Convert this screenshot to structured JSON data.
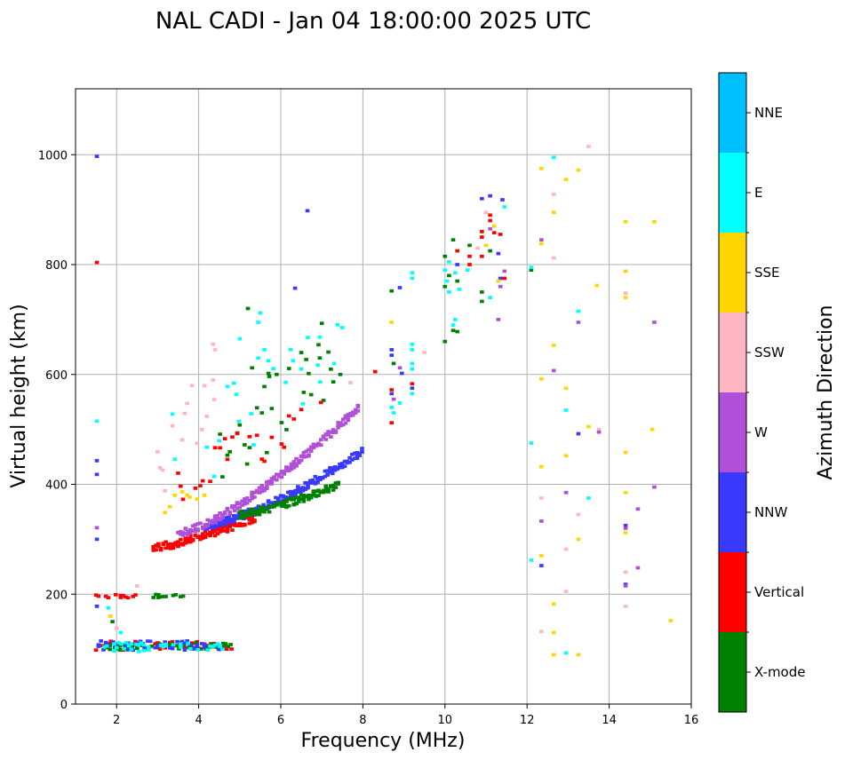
{
  "chart_data": {
    "type": "scatter",
    "title": "NAL CADI - Jan 04 18:00:00 2025 UTC",
    "xlabel": "Frequency (MHz)",
    "ylabel": "Virtual height (km)",
    "xlim": [
      1,
      16
    ],
    "ylim": [
      0,
      1120
    ],
    "grid": true,
    "xticks": [
      2,
      4,
      6,
      8,
      10,
      12,
      14,
      16
    ],
    "yticks": [
      0,
      200,
      400,
      600,
      800,
      1000
    ],
    "marker": "short horizontal dash per echo (approx. 0.1 MHz x 6 km)",
    "colorbar": {
      "label": "Azimuth Direction",
      "categories": [
        {
          "name": "X-mode",
          "color": "#008000"
        },
        {
          "name": "Vertical",
          "color": "#ff0000"
        },
        {
          "name": "NNW",
          "color": "#3a3aff"
        },
        {
          "name": "W",
          "color": "#b050d8"
        },
        {
          "name": "SSW",
          "color": "#ffb6c1"
        },
        {
          "name": "SSE",
          "color": "#ffd700"
        },
        {
          "name": "E",
          "color": "#00ffff"
        },
        {
          "name": "NNE",
          "color": "#00bfff"
        }
      ]
    },
    "traces": [
      {
        "category": "Vertical",
        "description": "E-layer trace",
        "x_range": [
          1.5,
          4.8
        ],
        "y_range": [
          98,
          115
        ]
      },
      {
        "category": "X-mode",
        "description": "E-layer trace",
        "x_range": [
          1.6,
          4.9
        ],
        "y_range": [
          98,
          112
        ]
      },
      {
        "category": "NNW",
        "description": "E-layer trace",
        "x_range": [
          1.5,
          4.5
        ],
        "y_range": [
          98,
          115
        ]
      },
      {
        "category": "E",
        "description": "E-layer trace",
        "x_range": [
          1.7,
          4.6
        ],
        "y_range": [
          95,
          112
        ]
      },
      {
        "category": "Vertical",
        "description": "2nd hop E trace",
        "x_range": [
          1.5,
          2.5
        ],
        "y_range": [
          193,
          200
        ]
      },
      {
        "category": "X-mode",
        "description": "2nd hop E trace",
        "x_range": [
          2.9,
          3.7
        ],
        "y_range": [
          193,
          200
        ]
      },
      {
        "category": "Vertical",
        "description": "F-layer trace",
        "x_range": [
          2.9,
          5.4
        ],
        "y_range": [
          285,
          340
        ]
      },
      {
        "category": "NNW",
        "description": "F-layer trace",
        "x_range": [
          4.2,
          8.0
        ],
        "y_range": [
          325,
          460
        ]
      },
      {
        "category": "X-mode",
        "description": "F-layer trace",
        "x_range": [
          5.0,
          7.4
        ],
        "y_range": [
          345,
          400
        ]
      },
      {
        "category": "W",
        "description": "F-layer trace",
        "x_range": [
          3.5,
          7.9
        ],
        "y_range": [
          310,
          540
        ]
      },
      {
        "category": "SSE",
        "description": "F-layer oblique spread",
        "x_range": [
          3.0,
          4.5
        ],
        "y_range": [
          340,
          420
        ]
      },
      {
        "category": "E",
        "description": "F-layer oblique spread",
        "x_range": [
          3.0,
          7.5
        ],
        "y_range": [
          350,
          715
        ]
      },
      {
        "category": "SSW",
        "description": "F-layer oblique spread",
        "x_range": [
          3.0,
          4.5
        ],
        "y_range": [
          360,
          655
        ]
      },
      {
        "category": "X-mode",
        "description": "F-layer oblique spread",
        "x_range": [
          4.4,
          7.3
        ],
        "y_range": [
          380,
          695
        ]
      },
      {
        "category": "Vertical",
        "description": "F-layer oblique spread",
        "x_range": [
          3.5,
          7.0
        ],
        "y_range": [
          360,
          560
        ]
      }
    ],
    "echoes": [
      {
        "f": 1.52,
        "h": 997,
        "c": "NNW"
      },
      {
        "f": 1.52,
        "h": 804,
        "c": "Vertical"
      },
      {
        "f": 1.52,
        "h": 515,
        "c": "E"
      },
      {
        "f": 1.52,
        "h": 443,
        "c": "NNW"
      },
      {
        "f": 1.52,
        "h": 418,
        "c": "NNW"
      },
      {
        "f": 1.52,
        "h": 321,
        "c": "W"
      },
      {
        "f": 1.52,
        "h": 300,
        "c": "NNW"
      },
      {
        "f": 1.52,
        "h": 178,
        "c": "NNW"
      },
      {
        "f": 1.8,
        "h": 175,
        "c": "E"
      },
      {
        "f": 1.85,
        "h": 160,
        "c": "SSE"
      },
      {
        "f": 1.9,
        "h": 150,
        "c": "X-mode"
      },
      {
        "f": 2.0,
        "h": 138,
        "c": "SSW"
      },
      {
        "f": 2.1,
        "h": 130,
        "c": "E"
      },
      {
        "f": 2.5,
        "h": 215,
        "c": "SSW"
      },
      {
        "f": 6.65,
        "h": 898,
        "c": "NNW"
      },
      {
        "f": 6.35,
        "h": 757,
        "c": "NNW"
      },
      {
        "f": 7.0,
        "h": 693,
        "c": "X-mode"
      },
      {
        "f": 6.95,
        "h": 668,
        "c": "E"
      },
      {
        "f": 5.2,
        "h": 720,
        "c": "X-mode"
      },
      {
        "f": 5.5,
        "h": 712,
        "c": "E"
      },
      {
        "f": 5.45,
        "h": 695,
        "c": "E"
      },
      {
        "f": 5.0,
        "h": 665,
        "c": "E"
      },
      {
        "f": 5.6,
        "h": 645,
        "c": "E"
      },
      {
        "f": 5.45,
        "h": 630,
        "c": "E"
      },
      {
        "f": 5.3,
        "h": 612,
        "c": "X-mode"
      },
      {
        "f": 5.7,
        "h": 602,
        "c": "X-mode"
      },
      {
        "f": 5.9,
        "h": 600,
        "c": "X-mode"
      },
      {
        "f": 6.3,
        "h": 625,
        "c": "E"
      },
      {
        "f": 6.5,
        "h": 610,
        "c": "E"
      },
      {
        "f": 6.95,
        "h": 630,
        "c": "X-mode"
      },
      {
        "f": 7.3,
        "h": 620,
        "c": "E"
      },
      {
        "f": 7.45,
        "h": 600,
        "c": "X-mode"
      },
      {
        "f": 7.7,
        "h": 585,
        "c": "SSW"
      },
      {
        "f": 4.35,
        "h": 655,
        "c": "SSW"
      },
      {
        "f": 4.4,
        "h": 645,
        "c": "SSW"
      },
      {
        "f": 4.35,
        "h": 590,
        "c": "SSW"
      },
      {
        "f": 4.7,
        "h": 578,
        "c": "E"
      },
      {
        "f": 8.3,
        "h": 605,
        "c": "Vertical"
      },
      {
        "f": 8.7,
        "h": 752,
        "c": "X-mode"
      },
      {
        "f": 8.9,
        "h": 758,
        "c": "NNW"
      },
      {
        "f": 9.2,
        "h": 785,
        "c": "E"
      },
      {
        "f": 9.2,
        "h": 775,
        "c": "E"
      },
      {
        "f": 8.7,
        "h": 695,
        "c": "SSE"
      },
      {
        "f": 8.7,
        "h": 645,
        "c": "NNW"
      },
      {
        "f": 8.7,
        "h": 635,
        "c": "NNW"
      },
      {
        "f": 8.75,
        "h": 620,
        "c": "X-mode"
      },
      {
        "f": 8.9,
        "h": 612,
        "c": "W"
      },
      {
        "f": 8.95,
        "h": 602,
        "c": "NNW"
      },
      {
        "f": 9.2,
        "h": 655,
        "c": "E"
      },
      {
        "f": 9.2,
        "h": 645,
        "c": "E"
      },
      {
        "f": 9.2,
        "h": 620,
        "c": "E"
      },
      {
        "f": 9.2,
        "h": 610,
        "c": "E"
      },
      {
        "f": 9.5,
        "h": 640,
        "c": "SSW"
      },
      {
        "f": 8.7,
        "h": 572,
        "c": "Vertical"
      },
      {
        "f": 8.7,
        "h": 565,
        "c": "NNW"
      },
      {
        "f": 8.75,
        "h": 555,
        "c": "W"
      },
      {
        "f": 8.9,
        "h": 548,
        "c": "E"
      },
      {
        "f": 8.7,
        "h": 540,
        "c": "E"
      },
      {
        "f": 8.75,
        "h": 530,
        "c": "E"
      },
      {
        "f": 8.7,
        "h": 512,
        "c": "Vertical"
      },
      {
        "f": 9.2,
        "h": 583,
        "c": "Vertical"
      },
      {
        "f": 9.2,
        "h": 575,
        "c": "NNW"
      },
      {
        "f": 9.2,
        "h": 565,
        "c": "E"
      },
      {
        "f": 10.0,
        "h": 815,
        "c": "X-mode"
      },
      {
        "f": 10.1,
        "h": 805,
        "c": "E"
      },
      {
        "f": 10.0,
        "h": 790,
        "c": "E"
      },
      {
        "f": 10.1,
        "h": 780,
        "c": "X-mode"
      },
      {
        "f": 10.05,
        "h": 770,
        "c": "E"
      },
      {
        "f": 10.0,
        "h": 760,
        "c": "X-mode"
      },
      {
        "f": 10.1,
        "h": 750,
        "c": "E"
      },
      {
        "f": 10.2,
        "h": 845,
        "c": "X-mode"
      },
      {
        "f": 10.3,
        "h": 825,
        "c": "Vertical"
      },
      {
        "f": 10.3,
        "h": 800,
        "c": "NNW"
      },
      {
        "f": 10.25,
        "h": 785,
        "c": "E"
      },
      {
        "f": 10.3,
        "h": 770,
        "c": "X-mode"
      },
      {
        "f": 10.35,
        "h": 755,
        "c": "E"
      },
      {
        "f": 10.6,
        "h": 835,
        "c": "X-mode"
      },
      {
        "f": 10.6,
        "h": 815,
        "c": "Vertical"
      },
      {
        "f": 10.6,
        "h": 800,
        "c": "Vertical"
      },
      {
        "f": 10.55,
        "h": 790,
        "c": "E"
      },
      {
        "f": 10.25,
        "h": 700,
        "c": "E"
      },
      {
        "f": 10.2,
        "h": 690,
        "c": "E"
      },
      {
        "f": 10.2,
        "h": 680,
        "c": "X-mode"
      },
      {
        "f": 10.3,
        "h": 678,
        "c": "X-mode"
      },
      {
        "f": 10.0,
        "h": 660,
        "c": "X-mode"
      },
      {
        "f": 10.9,
        "h": 860,
        "c": "Vertical"
      },
      {
        "f": 10.9,
        "h": 850,
        "c": "Vertical"
      },
      {
        "f": 11.1,
        "h": 890,
        "c": "Vertical"
      },
      {
        "f": 11.1,
        "h": 880,
        "c": "Vertical"
      },
      {
        "f": 11.1,
        "h": 865,
        "c": "W"
      },
      {
        "f": 11.2,
        "h": 858,
        "c": "Vertical"
      },
      {
        "f": 11.35,
        "h": 855,
        "c": "Vertical"
      },
      {
        "f": 11.0,
        "h": 835,
        "c": "SSE"
      },
      {
        "f": 11.1,
        "h": 825,
        "c": "X-mode"
      },
      {
        "f": 10.8,
        "h": 830,
        "c": "SSW"
      },
      {
        "f": 10.9,
        "h": 815,
        "c": "Vertical"
      },
      {
        "f": 11.3,
        "h": 820,
        "c": "NNW"
      },
      {
        "f": 10.9,
        "h": 920,
        "c": "NNW"
      },
      {
        "f": 11.1,
        "h": 925,
        "c": "NNW"
      },
      {
        "f": 11.4,
        "h": 918,
        "c": "NNW"
      },
      {
        "f": 11.45,
        "h": 905,
        "c": "E"
      },
      {
        "f": 11.0,
        "h": 895,
        "c": "SSW"
      },
      {
        "f": 11.2,
        "h": 870,
        "c": "SSE"
      },
      {
        "f": 11.35,
        "h": 775,
        "c": "NNW"
      },
      {
        "f": 11.3,
        "h": 770,
        "c": "SSE"
      },
      {
        "f": 11.35,
        "h": 760,
        "c": "W"
      },
      {
        "f": 11.45,
        "h": 788,
        "c": "W"
      },
      {
        "f": 10.9,
        "h": 750,
        "c": "X-mode"
      },
      {
        "f": 11.1,
        "h": 740,
        "c": "E"
      },
      {
        "f": 10.9,
        "h": 733,
        "c": "X-mode"
      },
      {
        "f": 11.3,
        "h": 700,
        "c": "W"
      },
      {
        "f": 11.45,
        "h": 775,
        "c": "Vertical"
      },
      {
        "f": 12.1,
        "h": 790,
        "c": "X-mode"
      },
      {
        "f": 12.1,
        "h": 795,
        "c": "E"
      },
      {
        "f": 12.35,
        "h": 845,
        "c": "W"
      },
      {
        "f": 12.35,
        "h": 838,
        "c": "SSE"
      },
      {
        "f": 12.35,
        "h": 975,
        "c": "SSE"
      },
      {
        "f": 12.65,
        "h": 995,
        "c": "E"
      },
      {
        "f": 12.65,
        "h": 928,
        "c": "SSW"
      },
      {
        "f": 12.65,
        "h": 895,
        "c": "SSE"
      },
      {
        "f": 12.65,
        "h": 812,
        "c": "SSW"
      },
      {
        "f": 12.95,
        "h": 955,
        "c": "SSE"
      },
      {
        "f": 13.25,
        "h": 972,
        "c": "SSE"
      },
      {
        "f": 13.5,
        "h": 1015,
        "c": "SSW"
      },
      {
        "f": 13.7,
        "h": 762,
        "c": "SSE"
      },
      {
        "f": 13.25,
        "h": 715,
        "c": "E"
      },
      {
        "f": 13.25,
        "h": 695,
        "c": "W"
      },
      {
        "f": 12.65,
        "h": 653,
        "c": "SSE"
      },
      {
        "f": 12.65,
        "h": 607,
        "c": "W"
      },
      {
        "f": 12.35,
        "h": 592,
        "c": "SSE"
      },
      {
        "f": 12.95,
        "h": 575,
        "c": "SSE"
      },
      {
        "f": 12.95,
        "h": 535,
        "c": "E"
      },
      {
        "f": 13.25,
        "h": 492,
        "c": "NNW"
      },
      {
        "f": 13.5,
        "h": 505,
        "c": "SSE"
      },
      {
        "f": 13.75,
        "h": 500,
        "c": "SSW"
      },
      {
        "f": 13.75,
        "h": 495,
        "c": "W"
      },
      {
        "f": 12.95,
        "h": 452,
        "c": "SSE"
      },
      {
        "f": 12.1,
        "h": 475,
        "c": "E"
      },
      {
        "f": 12.35,
        "h": 432,
        "c": "SSE"
      },
      {
        "f": 12.95,
        "h": 385,
        "c": "W"
      },
      {
        "f": 13.5,
        "h": 375,
        "c": "E"
      },
      {
        "f": 12.35,
        "h": 375,
        "c": "SSW"
      },
      {
        "f": 13.25,
        "h": 345,
        "c": "SSW"
      },
      {
        "f": 12.35,
        "h": 333,
        "c": "W"
      },
      {
        "f": 13.25,
        "h": 300,
        "c": "SSE"
      },
      {
        "f": 12.95,
        "h": 282,
        "c": "SSW"
      },
      {
        "f": 12.35,
        "h": 270,
        "c": "SSE"
      },
      {
        "f": 12.1,
        "h": 262,
        "c": "E"
      },
      {
        "f": 12.35,
        "h": 252,
        "c": "NNW"
      },
      {
        "f": 12.95,
        "h": 205,
        "c": "SSW"
      },
      {
        "f": 12.65,
        "h": 182,
        "c": "SSE"
      },
      {
        "f": 12.35,
        "h": 132,
        "c": "SSW"
      },
      {
        "f": 12.65,
        "h": 130,
        "c": "SSE"
      },
      {
        "f": 12.65,
        "h": 90,
        "c": "SSE"
      },
      {
        "f": 12.95,
        "h": 93,
        "c": "E"
      },
      {
        "f": 13.25,
        "h": 90,
        "c": "SSE"
      },
      {
        "f": 14.4,
        "h": 878,
        "c": "SSE"
      },
      {
        "f": 15.1,
        "h": 878,
        "c": "SSE"
      },
      {
        "f": 14.4,
        "h": 788,
        "c": "SSE"
      },
      {
        "f": 14.4,
        "h": 748,
        "c": "SSW"
      },
      {
        "f": 14.4,
        "h": 740,
        "c": "SSE"
      },
      {
        "f": 15.1,
        "h": 695,
        "c": "W"
      },
      {
        "f": 15.05,
        "h": 500,
        "c": "SSE"
      },
      {
        "f": 14.4,
        "h": 458,
        "c": "SSE"
      },
      {
        "f": 15.1,
        "h": 395,
        "c": "W"
      },
      {
        "f": 14.4,
        "h": 385,
        "c": "SSE"
      },
      {
        "f": 14.7,
        "h": 355,
        "c": "W"
      },
      {
        "f": 14.4,
        "h": 325,
        "c": "NNW"
      },
      {
        "f": 14.4,
        "h": 320,
        "c": "W"
      },
      {
        "f": 14.4,
        "h": 312,
        "c": "SSE"
      },
      {
        "f": 14.7,
        "h": 248,
        "c": "W"
      },
      {
        "f": 14.4,
        "h": 240,
        "c": "SSW"
      },
      {
        "f": 14.4,
        "h": 218,
        "c": "NNW"
      },
      {
        "f": 14.4,
        "h": 215,
        "c": "W"
      },
      {
        "f": 14.4,
        "h": 178,
        "c": "SSW"
      },
      {
        "f": 15.5,
        "h": 152,
        "c": "SSE"
      }
    ]
  }
}
